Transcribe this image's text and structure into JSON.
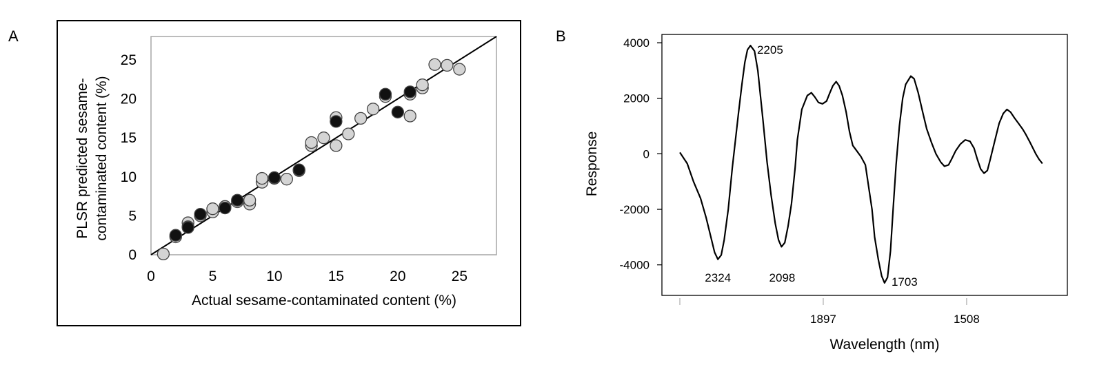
{
  "panels": {
    "a_label": "A",
    "b_label": "B"
  },
  "chart_data": [
    {
      "type": "scatter",
      "panel": "A",
      "xlabel": "Actual sesame-contaminated content (%)",
      "ylabel_lines": [
        "PLSR predicted sesame-",
        "contaminated content (%)"
      ],
      "xlim": [
        0,
        28
      ],
      "ylim": [
        0,
        28
      ],
      "xticks": [
        0,
        5,
        10,
        15,
        20,
        25
      ],
      "yticks": [
        0,
        5,
        10,
        15,
        20,
        25
      ],
      "grid": false,
      "colors": {
        "set1": "#d4d4d4",
        "set2": "#111111",
        "marker_edge": "#444444",
        "frame": "#a6a6a6",
        "line": "#000000"
      },
      "fit_line": {
        "slope": 1,
        "intercept": 0
      },
      "series": [
        {
          "color_key": "set1",
          "points": [
            [
              1,
              0.1
            ],
            [
              2,
              2.3
            ],
            [
              3,
              4.1
            ],
            [
              3,
              3.6
            ],
            [
              4,
              5.0
            ],
            [
              5,
              5.5
            ],
            [
              5,
              5.9
            ],
            [
              6,
              6.2
            ],
            [
              7,
              6.8
            ],
            [
              8,
              6.5
            ],
            [
              8,
              7.0
            ],
            [
              9,
              9.3
            ],
            [
              9,
              9.8
            ],
            [
              10,
              9.8
            ],
            [
              11,
              9.7
            ],
            [
              12,
              10.8
            ],
            [
              13,
              14.0
            ],
            [
              13,
              14.4
            ],
            [
              14,
              15.0
            ],
            [
              15,
              14.0
            ],
            [
              15,
              17.6
            ],
            [
              16,
              15.5
            ],
            [
              17,
              17.5
            ],
            [
              18,
              18.7
            ],
            [
              19,
              20.3
            ],
            [
              21,
              17.8
            ],
            [
              21,
              20.6
            ],
            [
              22,
              21.4
            ],
            [
              22,
              21.8
            ],
            [
              23,
              24.4
            ],
            [
              24,
              24.3
            ],
            [
              25,
              23.8
            ]
          ]
        },
        {
          "color_key": "set2",
          "points": [
            [
              2,
              2.5
            ],
            [
              3,
              3.5
            ],
            [
              4,
              5.2
            ],
            [
              6,
              6.0
            ],
            [
              7,
              7.0
            ],
            [
              10,
              9.9
            ],
            [
              12,
              10.9
            ],
            [
              15,
              17.1
            ],
            [
              19,
              20.6
            ],
            [
              20,
              18.3
            ],
            [
              21,
              20.9
            ]
          ]
        }
      ]
    },
    {
      "type": "line",
      "panel": "B",
      "xlabel": "Wavelength (nm)",
      "ylabel": "Response",
      "xlim": [
        0,
        100
      ],
      "ylim": [
        -5100,
        4300
      ],
      "xticks": [
        {
          "x": 0,
          "label": ""
        },
        {
          "x": 38.8,
          "label": "1897"
        },
        {
          "x": 77.6,
          "label": "1508"
        }
      ],
      "yticks": [
        4000,
        2000,
        0,
        -2000,
        -4000
      ],
      "grid": false,
      "colors": {
        "line": "#000000",
        "axis": "#000000",
        "tick": "#b3b3b3"
      },
      "annotations": [
        {
          "label": "2205",
          "x": 19.4,
          "y": 3900
        },
        {
          "label": "2324",
          "x": 10.3,
          "y": -3800
        },
        {
          "label": "2098",
          "x": 27.7,
          "y": -3300
        },
        {
          "label": "1703",
          "x": 55.4,
          "y": -4650
        }
      ],
      "series": [
        {
          "points": [
            [
              0,
              50
            ],
            [
              2,
              -350
            ],
            [
              3.7,
              -1000
            ],
            [
              5.6,
              -1600
            ],
            [
              7.1,
              -2300
            ],
            [
              8.4,
              -3000
            ],
            [
              9.4,
              -3550
            ],
            [
              10.3,
              -3800
            ],
            [
              11.2,
              -3650
            ],
            [
              12,
              -3100
            ],
            [
              13.1,
              -2000
            ],
            [
              14.2,
              -500
            ],
            [
              15.9,
              1500
            ],
            [
              16.8,
              2500
            ],
            [
              17.6,
              3300
            ],
            [
              18.3,
              3750
            ],
            [
              19.1,
              3900
            ],
            [
              20.2,
              3700
            ],
            [
              21.1,
              3000
            ],
            [
              22.5,
              1200
            ],
            [
              23.6,
              -300
            ],
            [
              24.7,
              -1500
            ],
            [
              25.8,
              -2500
            ],
            [
              26.7,
              -3100
            ],
            [
              27.5,
              -3350
            ],
            [
              28.4,
              -3200
            ],
            [
              29.3,
              -2600
            ],
            [
              30.2,
              -1800
            ],
            [
              31.2,
              -500
            ],
            [
              31.8,
              500
            ],
            [
              33,
              1600
            ],
            [
              34.5,
              2100
            ],
            [
              35.6,
              2200
            ],
            [
              36.5,
              2050
            ],
            [
              37.5,
              1850
            ],
            [
              38.6,
              1800
            ],
            [
              39.7,
              1900
            ],
            [
              40.6,
              2200
            ],
            [
              41.4,
              2450
            ],
            [
              42.3,
              2600
            ],
            [
              43.1,
              2450
            ],
            [
              44,
              2100
            ],
            [
              45,
              1500
            ],
            [
              45.9,
              800
            ],
            [
              46.8,
              300
            ],
            [
              47.9,
              100
            ],
            [
              49,
              -100
            ],
            [
              50.2,
              -400
            ],
            [
              51.1,
              -1200
            ],
            [
              52,
              -2000
            ],
            [
              52.7,
              -3000
            ],
            [
              53.7,
              -3800
            ],
            [
              54.6,
              -4400
            ],
            [
              55.4,
              -4650
            ],
            [
              56.2,
              -4450
            ],
            [
              57,
              -3500
            ],
            [
              57.7,
              -2000
            ],
            [
              58.5,
              -400
            ],
            [
              59.4,
              1000
            ],
            [
              60.3,
              2000
            ],
            [
              61.1,
              2500
            ],
            [
              62.5,
              2800
            ],
            [
              63.4,
              2700
            ],
            [
              64.5,
              2200
            ],
            [
              65.7,
              1500
            ],
            [
              66.8,
              900
            ],
            [
              68.1,
              400
            ],
            [
              69.3,
              0
            ],
            [
              70.6,
              -300
            ],
            [
              71.6,
              -450
            ],
            [
              72.7,
              -400
            ],
            [
              73.5,
              -200
            ],
            [
              74.6,
              100
            ],
            [
              75.9,
              350
            ],
            [
              77.2,
              500
            ],
            [
              78.5,
              450
            ],
            [
              79.6,
              200
            ],
            [
              80.5,
              -200
            ],
            [
              81.4,
              -550
            ],
            [
              82.3,
              -700
            ],
            [
              83.2,
              -600
            ],
            [
              84,
              -200
            ],
            [
              85.1,
              400
            ],
            [
              86.4,
              1100
            ],
            [
              87.5,
              1450
            ],
            [
              88.5,
              1600
            ],
            [
              89.5,
              1500
            ],
            [
              90.5,
              1300
            ],
            [
              91.6,
              1100
            ],
            [
              92.7,
              900
            ],
            [
              93.6,
              700
            ],
            [
              94.8,
              400
            ],
            [
              96.3,
              0
            ],
            [
              97.2,
              -200
            ],
            [
              98.1,
              -350
            ]
          ]
        }
      ]
    }
  ]
}
